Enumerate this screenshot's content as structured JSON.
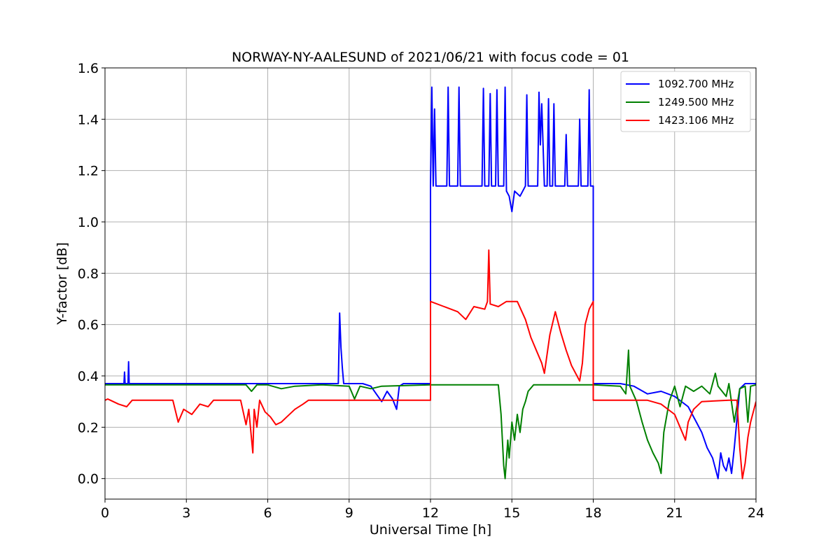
{
  "chart_data": {
    "type": "line",
    "title": "NORWAY-NY-AALESUND of 2021/06/21 with focus code = 01",
    "xlabel": "Universal Time [h]",
    "ylabel": "Y-factor [dB]",
    "xlim": [
      0,
      24
    ],
    "ylim": [
      -0.08,
      1.6
    ],
    "xticks": [
      0,
      3,
      6,
      9,
      12,
      15,
      18,
      21,
      24
    ],
    "xtick_labels": [
      "0",
      "3",
      "6",
      "9",
      "12",
      "15",
      "18",
      "21",
      "24"
    ],
    "yticks": [
      0.0,
      0.2,
      0.4,
      0.6,
      0.8,
      1.0,
      1.2,
      1.4,
      1.6
    ],
    "ytick_labels": [
      "0.0",
      "0.2",
      "0.4",
      "0.6",
      "0.8",
      "1.0",
      "1.2",
      "1.4",
      "1.6"
    ],
    "grid": true,
    "legend_position": "top-right",
    "series": [
      {
        "name": "1092.700 MHz",
        "color": "#0000ff",
        "points": [
          [
            0,
            0.37
          ],
          [
            0.7,
            0.37
          ],
          [
            0.72,
            0.415
          ],
          [
            0.74,
            0.37
          ],
          [
            0.85,
            0.37
          ],
          [
            0.87,
            0.455
          ],
          [
            0.89,
            0.37
          ],
          [
            3,
            0.37
          ],
          [
            6,
            0.37
          ],
          [
            8.6,
            0.37
          ],
          [
            8.65,
            0.645
          ],
          [
            8.7,
            0.51
          ],
          [
            8.75,
            0.43
          ],
          [
            8.8,
            0.37
          ],
          [
            9.5,
            0.37
          ],
          [
            9.8,
            0.36
          ],
          [
            10.0,
            0.33
          ],
          [
            10.2,
            0.3
          ],
          [
            10.4,
            0.34
          ],
          [
            10.6,
            0.31
          ],
          [
            10.75,
            0.27
          ],
          [
            10.85,
            0.36
          ],
          [
            11.0,
            0.37
          ],
          [
            12.0,
            0.37
          ],
          [
            12.0,
            1.14
          ],
          [
            12.05,
            1.525
          ],
          [
            12.1,
            1.14
          ],
          [
            12.15,
            1.44
          ],
          [
            12.2,
            1.14
          ],
          [
            12.6,
            1.14
          ],
          [
            12.65,
            1.525
          ],
          [
            12.7,
            1.14
          ],
          [
            13.0,
            1.14
          ],
          [
            13.05,
            1.525
          ],
          [
            13.1,
            1.14
          ],
          [
            13.9,
            1.14
          ],
          [
            13.95,
            1.52
          ],
          [
            14.0,
            1.14
          ],
          [
            14.15,
            1.14
          ],
          [
            14.2,
            1.5
          ],
          [
            14.25,
            1.14
          ],
          [
            14.4,
            1.14
          ],
          [
            14.45,
            1.515
          ],
          [
            14.5,
            1.14
          ],
          [
            14.7,
            1.14
          ],
          [
            14.75,
            1.525
          ],
          [
            14.8,
            1.12
          ],
          [
            14.9,
            1.1
          ],
          [
            15.0,
            1.04
          ],
          [
            15.1,
            1.12
          ],
          [
            15.3,
            1.1
          ],
          [
            15.5,
            1.14
          ],
          [
            15.55,
            1.495
          ],
          [
            15.6,
            1.14
          ],
          [
            15.95,
            1.14
          ],
          [
            16.0,
            1.505
          ],
          [
            16.05,
            1.3
          ],
          [
            16.1,
            1.46
          ],
          [
            16.15,
            1.3
          ],
          [
            16.2,
            1.14
          ],
          [
            16.3,
            1.14
          ],
          [
            16.35,
            1.48
          ],
          [
            16.4,
            1.14
          ],
          [
            16.5,
            1.14
          ],
          [
            16.55,
            1.46
          ],
          [
            16.6,
            1.14
          ],
          [
            16.95,
            1.14
          ],
          [
            17.0,
            1.34
          ],
          [
            17.05,
            1.14
          ],
          [
            17.45,
            1.14
          ],
          [
            17.5,
            1.4
          ],
          [
            17.55,
            1.14
          ],
          [
            17.8,
            1.14
          ],
          [
            17.85,
            1.515
          ],
          [
            17.9,
            1.14
          ],
          [
            18.0,
            1.14
          ],
          [
            18.0,
            0.37
          ],
          [
            19.0,
            0.37
          ],
          [
            19.5,
            0.36
          ],
          [
            20.0,
            0.33
          ],
          [
            20.5,
            0.34
          ],
          [
            21.0,
            0.32
          ],
          [
            21.5,
            0.28
          ],
          [
            21.8,
            0.22
          ],
          [
            22.0,
            0.18
          ],
          [
            22.2,
            0.12
          ],
          [
            22.4,
            0.08
          ],
          [
            22.5,
            0.04
          ],
          [
            22.6,
            0.0
          ],
          [
            22.7,
            0.1
          ],
          [
            22.8,
            0.05
          ],
          [
            22.9,
            0.03
          ],
          [
            23.0,
            0.08
          ],
          [
            23.1,
            0.02
          ],
          [
            23.2,
            0.12
          ],
          [
            23.4,
            0.35
          ],
          [
            23.6,
            0.37
          ],
          [
            24.0,
            0.37
          ]
        ]
      },
      {
        "name": "1249.500 MHz",
        "color": "#008000",
        "points": [
          [
            0,
            0.365
          ],
          [
            5.2,
            0.365
          ],
          [
            5.4,
            0.34
          ],
          [
            5.6,
            0.365
          ],
          [
            6.0,
            0.365
          ],
          [
            6.5,
            0.35
          ],
          [
            7.0,
            0.36
          ],
          [
            8.0,
            0.365
          ],
          [
            9.0,
            0.36
          ],
          [
            9.2,
            0.31
          ],
          [
            9.4,
            0.36
          ],
          [
            9.8,
            0.35
          ],
          [
            10.2,
            0.36
          ],
          [
            12.0,
            0.365
          ],
          [
            14.5,
            0.365
          ],
          [
            14.6,
            0.25
          ],
          [
            14.7,
            0.05
          ],
          [
            14.75,
            0.0
          ],
          [
            14.85,
            0.15
          ],
          [
            14.9,
            0.08
          ],
          [
            15.0,
            0.22
          ],
          [
            15.1,
            0.15
          ],
          [
            15.2,
            0.25
          ],
          [
            15.3,
            0.18
          ],
          [
            15.4,
            0.27
          ],
          [
            15.5,
            0.3
          ],
          [
            15.6,
            0.34
          ],
          [
            15.8,
            0.365
          ],
          [
            18.0,
            0.365
          ],
          [
            19.0,
            0.36
          ],
          [
            19.2,
            0.33
          ],
          [
            19.3,
            0.5
          ],
          [
            19.35,
            0.36
          ],
          [
            19.6,
            0.3
          ],
          [
            19.8,
            0.22
          ],
          [
            20.0,
            0.15
          ],
          [
            20.2,
            0.1
          ],
          [
            20.4,
            0.06
          ],
          [
            20.5,
            0.02
          ],
          [
            20.6,
            0.18
          ],
          [
            20.8,
            0.3
          ],
          [
            21.0,
            0.36
          ],
          [
            21.2,
            0.28
          ],
          [
            21.4,
            0.36
          ],
          [
            21.7,
            0.34
          ],
          [
            22.0,
            0.36
          ],
          [
            22.3,
            0.33
          ],
          [
            22.5,
            0.41
          ],
          [
            22.6,
            0.36
          ],
          [
            22.9,
            0.32
          ],
          [
            23.0,
            0.37
          ],
          [
            23.2,
            0.22
          ],
          [
            23.4,
            0.35
          ],
          [
            23.6,
            0.36
          ],
          [
            23.7,
            0.22
          ],
          [
            23.8,
            0.36
          ],
          [
            24.0,
            0.365
          ]
        ]
      },
      {
        "name": "1423.106 MHz",
        "color": "#ff0000",
        "points": [
          [
            0,
            0.305
          ],
          [
            0.1,
            0.31
          ],
          [
            0.2,
            0.305
          ],
          [
            0.5,
            0.29
          ],
          [
            0.8,
            0.28
          ],
          [
            1.0,
            0.305
          ],
          [
            2.5,
            0.305
          ],
          [
            2.7,
            0.22
          ],
          [
            2.9,
            0.27
          ],
          [
            3.2,
            0.25
          ],
          [
            3.5,
            0.29
          ],
          [
            3.8,
            0.28
          ],
          [
            4.0,
            0.305
          ],
          [
            5.0,
            0.305
          ],
          [
            5.2,
            0.21
          ],
          [
            5.3,
            0.27
          ],
          [
            5.45,
            0.1
          ],
          [
            5.5,
            0.27
          ],
          [
            5.6,
            0.2
          ],
          [
            5.7,
            0.305
          ],
          [
            5.9,
            0.26
          ],
          [
            6.1,
            0.24
          ],
          [
            6.3,
            0.21
          ],
          [
            6.5,
            0.22
          ],
          [
            6.7,
            0.24
          ],
          [
            7.0,
            0.27
          ],
          [
            7.3,
            0.29
          ],
          [
            7.5,
            0.305
          ],
          [
            12.0,
            0.305
          ],
          [
            12.0,
            0.69
          ],
          [
            12.5,
            0.67
          ],
          [
            13.0,
            0.65
          ],
          [
            13.3,
            0.62
          ],
          [
            13.6,
            0.67
          ],
          [
            14.0,
            0.66
          ],
          [
            14.1,
            0.69
          ],
          [
            14.15,
            0.89
          ],
          [
            14.2,
            0.68
          ],
          [
            14.5,
            0.67
          ],
          [
            14.8,
            0.69
          ],
          [
            15.2,
            0.69
          ],
          [
            15.5,
            0.62
          ],
          [
            15.7,
            0.55
          ],
          [
            15.9,
            0.5
          ],
          [
            16.1,
            0.45
          ],
          [
            16.2,
            0.41
          ],
          [
            16.4,
            0.56
          ],
          [
            16.6,
            0.65
          ],
          [
            16.8,
            0.57
          ],
          [
            17.0,
            0.5
          ],
          [
            17.2,
            0.44
          ],
          [
            17.4,
            0.4
          ],
          [
            17.5,
            0.38
          ],
          [
            17.6,
            0.45
          ],
          [
            17.7,
            0.6
          ],
          [
            17.85,
            0.66
          ],
          [
            18.0,
            0.69
          ],
          [
            18.0,
            0.305
          ],
          [
            20.0,
            0.305
          ],
          [
            20.5,
            0.29
          ],
          [
            21.0,
            0.25
          ],
          [
            21.2,
            0.2
          ],
          [
            21.4,
            0.15
          ],
          [
            21.5,
            0.22
          ],
          [
            21.7,
            0.27
          ],
          [
            22.0,
            0.3
          ],
          [
            23.0,
            0.305
          ],
          [
            23.3,
            0.305
          ],
          [
            23.4,
            0.12
          ],
          [
            23.5,
            0.0
          ],
          [
            23.6,
            0.06
          ],
          [
            23.7,
            0.16
          ],
          [
            23.8,
            0.22
          ],
          [
            24.0,
            0.3
          ]
        ]
      }
    ]
  }
}
